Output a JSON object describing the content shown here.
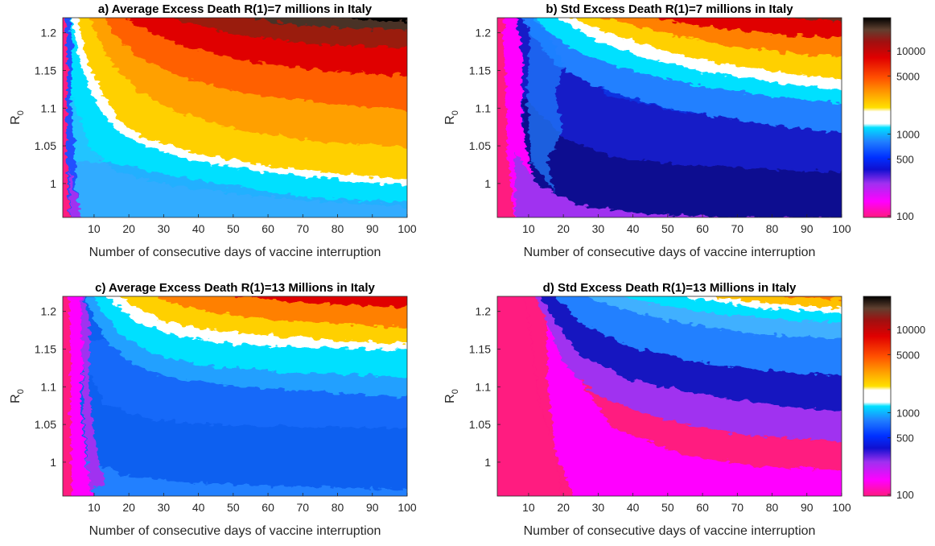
{
  "chart_data": [
    {
      "type": "heatmap",
      "title": "a) Average Excess Death R(1)=7 millions in Italy",
      "xlabel": "Number of consecutive days of vaccine interruption",
      "ylabel": "R",
      "ylabel_sub": "0",
      "xlim": [
        1,
        100
      ],
      "ylim": [
        0.955,
        1.22
      ],
      "xticks": [
        10,
        20,
        30,
        40,
        50,
        60,
        70,
        80,
        90,
        100
      ],
      "yticks": [
        1,
        1.05,
        1.1,
        1.15,
        1.2
      ],
      "color_scale": "log",
      "approx_contour_x_at_2000_deaths": [
        {
          "R0": 1.2,
          "days": 6
        },
        {
          "R0": 1.1,
          "days": 12
        },
        {
          "R0": 1.05,
          "days": 30
        },
        {
          "R0": 1.0,
          "days": 100
        }
      ]
    },
    {
      "type": "heatmap",
      "title": "b) Std Excess Death R(1)=7 millions in Italy",
      "xlabel": "Number of consecutive days of vaccine interruption",
      "ylabel": "R",
      "ylabel_sub": "0",
      "xlim": [
        1,
        100
      ],
      "ylim": [
        0.955,
        1.22
      ],
      "xticks": [
        10,
        20,
        30,
        40,
        50,
        60,
        70,
        80,
        90,
        100
      ],
      "yticks": [
        1,
        1.05,
        1.1,
        1.15,
        1.2
      ],
      "color_scale": "log",
      "colorbar_ticks": [
        "10000",
        "5000",
        "1000",
        "500",
        "100"
      ],
      "approx_contour_x_at_2000_deaths": [
        {
          "R0": 1.2,
          "days": 8
        },
        {
          "R0": 1.15,
          "days": 18
        },
        {
          "R0": 1.1,
          "days": 65
        },
        {
          "R0": 1.08,
          "days": 100
        }
      ]
    },
    {
      "type": "heatmap",
      "title": "c) Average Excess Death R(1)=13 Millions in Italy",
      "xlabel": "Number of consecutive days of vaccine interruption",
      "ylabel": "R",
      "ylabel_sub": "0",
      "xlim": [
        1,
        100
      ],
      "ylim": [
        0.955,
        1.22
      ],
      "xticks": [
        10,
        20,
        30,
        40,
        50,
        60,
        70,
        80,
        90,
        100
      ],
      "yticks": [
        1,
        1.05,
        1.1,
        1.15,
        1.2
      ],
      "color_scale": "log",
      "approx_contour_x_at_2000_deaths": [
        {
          "R0": 1.2,
          "days": 16
        },
        {
          "R0": 1.15,
          "days": 25
        },
        {
          "R0": 1.1,
          "days": 60
        },
        {
          "R0": 1.07,
          "days": 100
        }
      ]
    },
    {
      "type": "heatmap",
      "title": "d) Std Excess Death R(1)=13 Millions in Italy",
      "xlabel": "Number of consecutive days of vaccine interruption",
      "ylabel": "R",
      "ylabel_sub": "0",
      "xlim": [
        1,
        100
      ],
      "ylim": [
        0.955,
        1.22
      ],
      "xticks": [
        10,
        20,
        30,
        40,
        50,
        60,
        70,
        80,
        90,
        100
      ],
      "yticks": [
        1,
        1.05,
        1.1,
        1.15,
        1.2
      ],
      "color_scale": "log",
      "colorbar_ticks": [
        "10000",
        "5000",
        "1000",
        "500",
        "100"
      ],
      "approx_contour_x_at_2000_deaths": [
        {
          "R0": 1.2,
          "days": 70
        },
        {
          "R0": 1.19,
          "days": 100
        }
      ]
    }
  ],
  "colormap": [
    "#ff1a80",
    "#ff00ff",
    "#a030f0",
    "#1010d0",
    "#0030ff",
    "#2080ff",
    "#00e0ff",
    "#ffffff",
    "#ffc000",
    "#ff6000",
    "#e00000",
    "#803020",
    "#000000"
  ]
}
